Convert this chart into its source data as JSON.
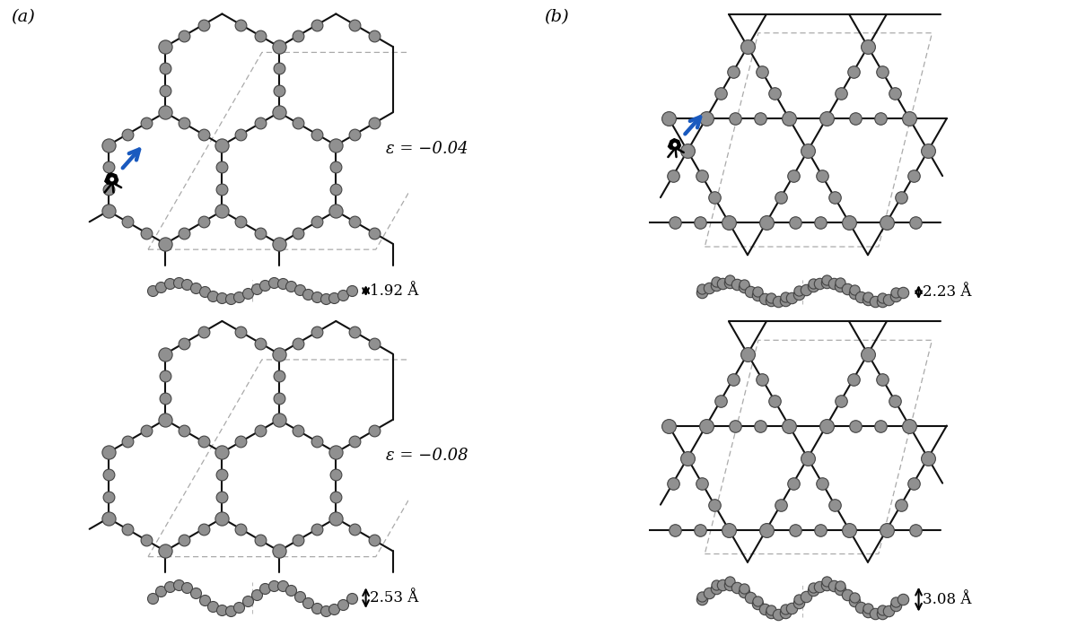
{
  "bg_color": "#ffffff",
  "atom_fc": "#909090",
  "atom_ec": "#444444",
  "bond_color": "#111111",
  "dash_color": "#aaaaaa",
  "blue_arrow": "#1a5abf",
  "label_a": "(a)",
  "label_b": "(b)",
  "eps1": "ε = −0.04",
  "eps2": "ε = −0.08",
  "h1a": "1.92 Å",
  "h2a": "2.53 Å",
  "h1b": "2.23 Å",
  "h2b": "3.08 Å"
}
